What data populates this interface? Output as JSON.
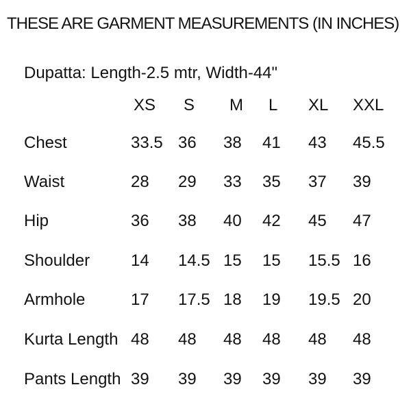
{
  "colors": {
    "background": "#ffffff",
    "text": "#121212"
  },
  "chart_data": {
    "type": "table",
    "title": "THESE ARE GARMENT MEASUREMENTS (IN INCHES)",
    "note": "Dupatta: Length-2.5 mtr, Width-44\"",
    "units": "inches",
    "columns": [
      "",
      "XS",
      "S",
      "M",
      "L",
      "XL",
      "XXL"
    ],
    "rows": [
      [
        "Chest",
        33.5,
        36,
        38,
        41,
        43,
        45.5
      ],
      [
        "Waist",
        28,
        29,
        33,
        35,
        37,
        39
      ],
      [
        "Hip",
        36,
        38,
        40,
        42,
        45,
        47
      ],
      [
        "Shoulder",
        14,
        14.5,
        15,
        15,
        15.5,
        16
      ],
      [
        "Armhole",
        17,
        17.5,
        18,
        19,
        19.5,
        20
      ],
      [
        "Kurta Length",
        48,
        48,
        48,
        48,
        48,
        48
      ],
      [
        "Pants Length",
        39,
        39,
        39,
        39,
        39,
        39
      ]
    ]
  }
}
